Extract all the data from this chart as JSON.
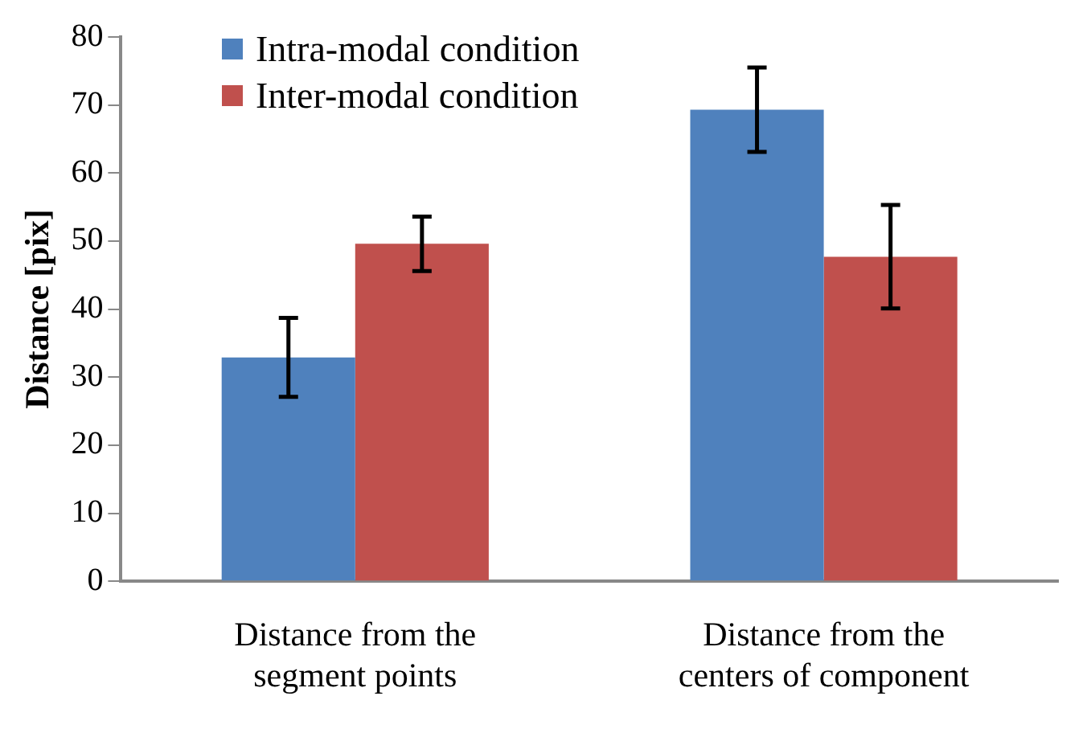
{
  "chart_data": {
    "type": "bar",
    "ylabel": "Distance [pix]",
    "categories": [
      "Distance from the segment points",
      "Distance from the centers of component"
    ],
    "series": [
      {
        "name": "Intra-modal condition",
        "color": "#4f81bd",
        "values": [
          32.9,
          69.3
        ],
        "errors": [
          5.8,
          6.2
        ]
      },
      {
        "name": "Inter-modal condition",
        "color": "#c0504d",
        "values": [
          49.6,
          47.7
        ],
        "errors": [
          4,
          7.6
        ]
      }
    ],
    "ylim": [
      0,
      80
    ],
    "yticks": [
      0,
      10,
      20,
      30,
      40,
      50,
      60,
      70,
      80
    ],
    "grid": false,
    "legend": "top left"
  }
}
